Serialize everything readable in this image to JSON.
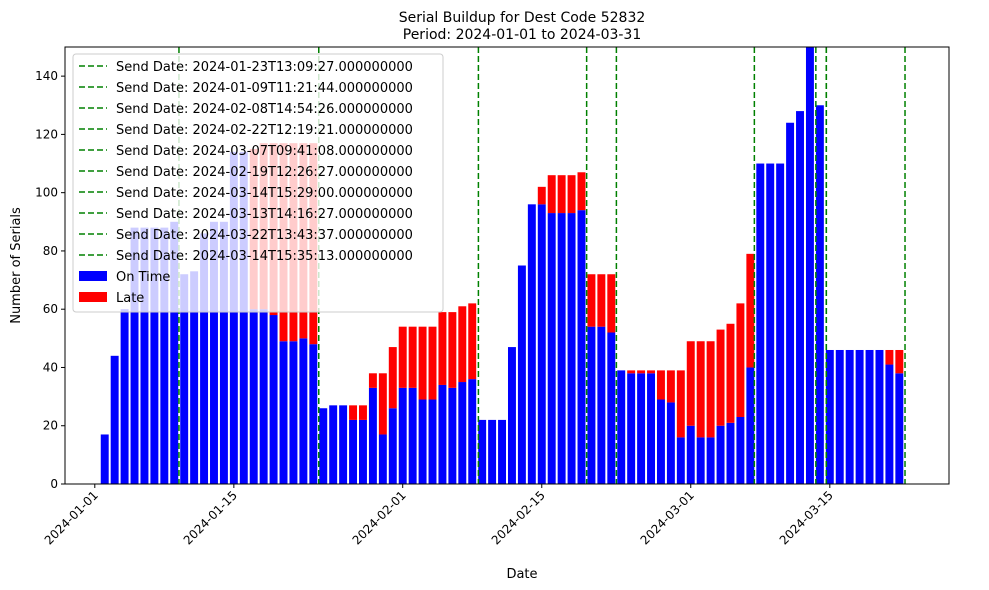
{
  "chart_data": {
    "type": "bar",
    "stacked": true,
    "title": "Serial Buildup for Dest Code 52832",
    "subtitle": "Period: 2024-01-01 to 2024-03-31",
    "xlabel": "Date",
    "ylabel": "Number of Serials",
    "xlim": [
      "2023-12-29",
      "2024-03-27"
    ],
    "ylim": [
      0,
      150
    ],
    "yticks": [
      0,
      20,
      40,
      60,
      80,
      100,
      120,
      140
    ],
    "xticks": [
      "2024-01-01",
      "2024-01-15",
      "2024-02-01",
      "2024-02-15",
      "2024-03-01",
      "2024-03-15"
    ],
    "grid": false,
    "legend_position": "top-left",
    "colors": {
      "on_time": "#0000ff",
      "late": "#ff0000",
      "send_date": "#008000"
    },
    "series": [
      {
        "name": "On Time",
        "color": "#0000ff"
      },
      {
        "name": "Late",
        "color": "#ff0000"
      }
    ],
    "bars": [
      {
        "date": "2024-01-02",
        "on_time": 17,
        "late": 0
      },
      {
        "date": "2024-01-03",
        "on_time": 44,
        "late": 0
      },
      {
        "date": "2024-01-04",
        "on_time": 60,
        "late": 0
      },
      {
        "date": "2024-01-05",
        "on_time": 88,
        "late": 0
      },
      {
        "date": "2024-01-06",
        "on_time": 88,
        "late": 0
      },
      {
        "date": "2024-01-07",
        "on_time": 88,
        "late": 0
      },
      {
        "date": "2024-01-08",
        "on_time": 88,
        "late": 0
      },
      {
        "date": "2024-01-09",
        "on_time": 90,
        "late": 0
      },
      {
        "date": "2024-01-10",
        "on_time": 72,
        "late": 0
      },
      {
        "date": "2024-01-11",
        "on_time": 73,
        "late": 0
      },
      {
        "date": "2024-01-12",
        "on_time": 86,
        "late": 0
      },
      {
        "date": "2024-01-13",
        "on_time": 90,
        "late": 0
      },
      {
        "date": "2024-01-14",
        "on_time": 90,
        "late": 0
      },
      {
        "date": "2024-01-15",
        "on_time": 114,
        "late": 0
      },
      {
        "date": "2024-01-16",
        "on_time": 114,
        "late": 0
      },
      {
        "date": "2024-01-17",
        "on_time": 60,
        "late": 55
      },
      {
        "date": "2024-01-18",
        "on_time": 60,
        "late": 57
      },
      {
        "date": "2024-01-19",
        "on_time": 58,
        "late": 59
      },
      {
        "date": "2024-01-20",
        "on_time": 49,
        "late": 68
      },
      {
        "date": "2024-01-21",
        "on_time": 49,
        "late": 68
      },
      {
        "date": "2024-01-22",
        "on_time": 50,
        "late": 67
      },
      {
        "date": "2024-01-23",
        "on_time": 48,
        "late": 69
      },
      {
        "date": "2024-01-24",
        "on_time": 26,
        "late": 0
      },
      {
        "date": "2024-01-25",
        "on_time": 27,
        "late": 0
      },
      {
        "date": "2024-01-26",
        "on_time": 27,
        "late": 0
      },
      {
        "date": "2024-01-27",
        "on_time": 22,
        "late": 5
      },
      {
        "date": "2024-01-28",
        "on_time": 22,
        "late": 5
      },
      {
        "date": "2024-01-29",
        "on_time": 33,
        "late": 5
      },
      {
        "date": "2024-01-30",
        "on_time": 17,
        "late": 21
      },
      {
        "date": "2024-01-31",
        "on_time": 26,
        "late": 21
      },
      {
        "date": "2024-02-01",
        "on_time": 33,
        "late": 21
      },
      {
        "date": "2024-02-02",
        "on_time": 33,
        "late": 21
      },
      {
        "date": "2024-02-03",
        "on_time": 29,
        "late": 25
      },
      {
        "date": "2024-02-04",
        "on_time": 29,
        "late": 25
      },
      {
        "date": "2024-02-05",
        "on_time": 34,
        "late": 25
      },
      {
        "date": "2024-02-06",
        "on_time": 33,
        "late": 26
      },
      {
        "date": "2024-02-07",
        "on_time": 35,
        "late": 26
      },
      {
        "date": "2024-02-08",
        "on_time": 36,
        "late": 26
      },
      {
        "date": "2024-02-09",
        "on_time": 22,
        "late": 0
      },
      {
        "date": "2024-02-10",
        "on_time": 22,
        "late": 0
      },
      {
        "date": "2024-02-11",
        "on_time": 22,
        "late": 0
      },
      {
        "date": "2024-02-12",
        "on_time": 47,
        "late": 0
      },
      {
        "date": "2024-02-13",
        "on_time": 75,
        "late": 0
      },
      {
        "date": "2024-02-14",
        "on_time": 96,
        "late": 0
      },
      {
        "date": "2024-02-15",
        "on_time": 96,
        "late": 6
      },
      {
        "date": "2024-02-16",
        "on_time": 93,
        "late": 13
      },
      {
        "date": "2024-02-17",
        "on_time": 93,
        "late": 13
      },
      {
        "date": "2024-02-18",
        "on_time": 93,
        "late": 13
      },
      {
        "date": "2024-02-19",
        "on_time": 94,
        "late": 13
      },
      {
        "date": "2024-02-20",
        "on_time": 54,
        "late": 18
      },
      {
        "date": "2024-02-21",
        "on_time": 54,
        "late": 18
      },
      {
        "date": "2024-02-22",
        "on_time": 52,
        "late": 20
      },
      {
        "date": "2024-02-23",
        "on_time": 39,
        "late": 0
      },
      {
        "date": "2024-02-24",
        "on_time": 38,
        "late": 1
      },
      {
        "date": "2024-02-25",
        "on_time": 38,
        "late": 1
      },
      {
        "date": "2024-02-26",
        "on_time": 38,
        "late": 1
      },
      {
        "date": "2024-02-27",
        "on_time": 29,
        "late": 10
      },
      {
        "date": "2024-02-28",
        "on_time": 28,
        "late": 11
      },
      {
        "date": "2024-02-29",
        "on_time": 16,
        "late": 23
      },
      {
        "date": "2024-03-01",
        "on_time": 20,
        "late": 29
      },
      {
        "date": "2024-03-02",
        "on_time": 16,
        "late": 33
      },
      {
        "date": "2024-03-03",
        "on_time": 16,
        "late": 33
      },
      {
        "date": "2024-03-04",
        "on_time": 20,
        "late": 33
      },
      {
        "date": "2024-03-05",
        "on_time": 21,
        "late": 34
      },
      {
        "date": "2024-03-06",
        "on_time": 23,
        "late": 39
      },
      {
        "date": "2024-03-07",
        "on_time": 40,
        "late": 39
      },
      {
        "date": "2024-03-08",
        "on_time": 110,
        "late": 0
      },
      {
        "date": "2024-03-09",
        "on_time": 110,
        "late": 0
      },
      {
        "date": "2024-03-10",
        "on_time": 110,
        "late": 0
      },
      {
        "date": "2024-03-11",
        "on_time": 124,
        "late": 0
      },
      {
        "date": "2024-03-12",
        "on_time": 128,
        "late": 0
      },
      {
        "date": "2024-03-13",
        "on_time": 150,
        "late": 0
      },
      {
        "date": "2024-03-14",
        "on_time": 130,
        "late": 0
      },
      {
        "date": "2024-03-15",
        "on_time": 46,
        "late": 0
      },
      {
        "date": "2024-03-16",
        "on_time": 46,
        "late": 0
      },
      {
        "date": "2024-03-17",
        "on_time": 46,
        "late": 0
      },
      {
        "date": "2024-03-18",
        "on_time": 46,
        "late": 0
      },
      {
        "date": "2024-03-19",
        "on_time": 46,
        "late": 0
      },
      {
        "date": "2024-03-20",
        "on_time": 46,
        "late": 0
      },
      {
        "date": "2024-03-21",
        "on_time": 41,
        "late": 5
      },
      {
        "date": "2024-03-22",
        "on_time": 38,
        "late": 8
      }
    ],
    "send_dates": [
      {
        "date": "2024-01-23T13:09:27",
        "label": "Send Date: 2024-01-23T13:09:27.000000000"
      },
      {
        "date": "2024-01-09T11:21:44",
        "label": "Send Date: 2024-01-09T11:21:44.000000000"
      },
      {
        "date": "2024-02-08T14:54:26",
        "label": "Send Date: 2024-02-08T14:54:26.000000000"
      },
      {
        "date": "2024-02-22T12:19:21",
        "label": "Send Date: 2024-02-22T12:19:21.000000000"
      },
      {
        "date": "2024-03-07T09:41:08",
        "label": "Send Date: 2024-03-07T09:41:08.000000000"
      },
      {
        "date": "2024-02-19T12:26:27",
        "label": "Send Date: 2024-02-19T12:26:27.000000000"
      },
      {
        "date": "2024-03-14T15:29:00",
        "label": "Send Date: 2024-03-14T15:29:00.000000000"
      },
      {
        "date": "2024-03-13T14:16:27",
        "label": "Send Date: 2024-03-13T14:16:27.000000000"
      },
      {
        "date": "2024-03-22T13:43:37",
        "label": "Send Date: 2024-03-22T13:43:37.000000000"
      },
      {
        "date": "2024-03-14T15:35:13",
        "label": "Send Date: 2024-03-14T15:35:13.000000000"
      }
    ]
  }
}
